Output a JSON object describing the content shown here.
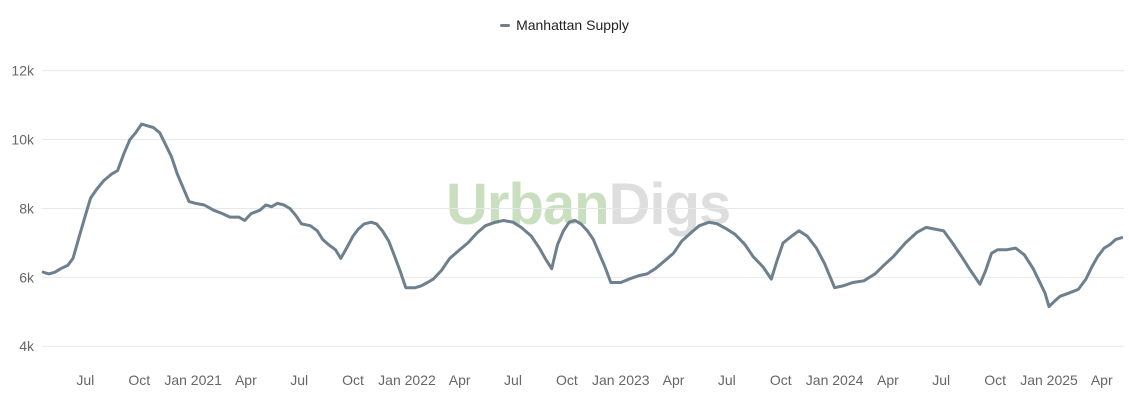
{
  "legend": {
    "label": "Manhattan Supply"
  },
  "watermark": {
    "part1": "Urban",
    "part2": "Digs"
  },
  "colors": {
    "series": "#6e7f8d",
    "grid": "#e8e8e8",
    "tick_text": "#666666",
    "watermark_green": "#c9dfbf",
    "watermark_gray": "#dedede"
  },
  "chart_data": {
    "type": "line",
    "title": "",
    "xlabel": "",
    "ylabel": "",
    "ylim": [
      3600,
      12600
    ],
    "xlim": [
      "2020-04-18",
      "2025-05-09"
    ],
    "y_ticks": [
      {
        "value": 4000,
        "label": "4k"
      },
      {
        "value": 6000,
        "label": "6k"
      },
      {
        "value": 8000,
        "label": "8k"
      },
      {
        "value": 10000,
        "label": "10k"
      },
      {
        "value": 12000,
        "label": "12k"
      }
    ],
    "x_ticks": [
      {
        "date": "2020-07-01",
        "label": "Jul"
      },
      {
        "date": "2020-10-01",
        "label": "Oct"
      },
      {
        "date": "2021-01-01",
        "label": "Jan 2021"
      },
      {
        "date": "2021-04-01",
        "label": "Apr"
      },
      {
        "date": "2021-07-01",
        "label": "Jul"
      },
      {
        "date": "2021-10-01",
        "label": "Oct"
      },
      {
        "date": "2022-01-01",
        "label": "Jan 2022"
      },
      {
        "date": "2022-04-01",
        "label": "Apr"
      },
      {
        "date": "2022-07-01",
        "label": "Jul"
      },
      {
        "date": "2022-10-01",
        "label": "Oct"
      },
      {
        "date": "2023-01-01",
        "label": "Jan 2023"
      },
      {
        "date": "2023-04-01",
        "label": "Apr"
      },
      {
        "date": "2023-07-01",
        "label": "Jul"
      },
      {
        "date": "2023-10-01",
        "label": "Oct"
      },
      {
        "date": "2024-01-01",
        "label": "Jan 2024"
      },
      {
        "date": "2024-04-01",
        "label": "Apr"
      },
      {
        "date": "2024-07-01",
        "label": "Jul"
      },
      {
        "date": "2024-10-01",
        "label": "Oct"
      },
      {
        "date": "2025-01-01",
        "label": "Jan 2025"
      },
      {
        "date": "2025-04-01",
        "label": "Apr"
      }
    ],
    "grid": true,
    "legend_position": "top-center",
    "series": [
      {
        "name": "Manhattan Supply",
        "color": "#6e7f8d",
        "points": [
          [
            "2020-04-20",
            6150
          ],
          [
            "2020-04-30",
            6100
          ],
          [
            "2020-05-10",
            6150
          ],
          [
            "2020-05-20",
            6250
          ],
          [
            "2020-06-01",
            6350
          ],
          [
            "2020-06-10",
            6550
          ],
          [
            "2020-06-20",
            7150
          ],
          [
            "2020-07-01",
            7800
          ],
          [
            "2020-07-10",
            8300
          ],
          [
            "2020-07-20",
            8550
          ],
          [
            "2020-08-01",
            8800
          ],
          [
            "2020-08-15",
            9000
          ],
          [
            "2020-08-25",
            9100
          ],
          [
            "2020-09-05",
            9600
          ],
          [
            "2020-09-15",
            10000
          ],
          [
            "2020-09-25",
            10200
          ],
          [
            "2020-10-05",
            10450
          ],
          [
            "2020-10-15",
            10400
          ],
          [
            "2020-10-25",
            10350
          ],
          [
            "2020-11-05",
            10200
          ],
          [
            "2020-11-15",
            9850
          ],
          [
            "2020-11-25",
            9500
          ],
          [
            "2020-12-05",
            9000
          ],
          [
            "2020-12-15",
            8600
          ],
          [
            "2020-12-25",
            8200
          ],
          [
            "2021-01-05",
            8150
          ],
          [
            "2021-01-20",
            8100
          ],
          [
            "2021-02-05",
            7950
          ],
          [
            "2021-02-20",
            7850
          ],
          [
            "2021-03-05",
            7750
          ],
          [
            "2021-03-20",
            7750
          ],
          [
            "2021-03-30",
            7650
          ],
          [
            "2021-04-10",
            7850
          ],
          [
            "2021-04-25",
            7950
          ],
          [
            "2021-05-05",
            8100
          ],
          [
            "2021-05-15",
            8050
          ],
          [
            "2021-05-25",
            8150
          ],
          [
            "2021-06-05",
            8100
          ],
          [
            "2021-06-15",
            8000
          ],
          [
            "2021-06-25",
            7800
          ],
          [
            "2021-07-05",
            7550
          ],
          [
            "2021-07-20",
            7500
          ],
          [
            "2021-08-01",
            7350
          ],
          [
            "2021-08-10",
            7100
          ],
          [
            "2021-08-20",
            6950
          ],
          [
            "2021-09-01",
            6800
          ],
          [
            "2021-09-10",
            6550
          ],
          [
            "2021-09-20",
            6850
          ],
          [
            "2021-10-01",
            7200
          ],
          [
            "2021-10-10",
            7400
          ],
          [
            "2021-10-20",
            7550
          ],
          [
            "2021-11-01",
            7600
          ],
          [
            "2021-11-10",
            7550
          ],
          [
            "2021-11-20",
            7350
          ],
          [
            "2021-12-01",
            7050
          ],
          [
            "2021-12-10",
            6650
          ],
          [
            "2021-12-20",
            6200
          ],
          [
            "2021-12-30",
            5700
          ],
          [
            "2022-01-05",
            5700
          ],
          [
            "2022-01-15",
            5700
          ],
          [
            "2022-01-25",
            5750
          ],
          [
            "2022-02-05",
            5850
          ],
          [
            "2022-02-15",
            5950
          ],
          [
            "2022-03-01",
            6200
          ],
          [
            "2022-03-15",
            6550
          ],
          [
            "2022-04-01",
            6800
          ],
          [
            "2022-04-15",
            7000
          ],
          [
            "2022-05-01",
            7300
          ],
          [
            "2022-05-15",
            7500
          ],
          [
            "2022-06-01",
            7600
          ],
          [
            "2022-06-15",
            7650
          ],
          [
            "2022-07-01",
            7600
          ],
          [
            "2022-07-15",
            7450
          ],
          [
            "2022-08-01",
            7200
          ],
          [
            "2022-08-15",
            6850
          ],
          [
            "2022-08-25",
            6550
          ],
          [
            "2022-09-05",
            6250
          ],
          [
            "2022-09-15",
            6950
          ],
          [
            "2022-09-25",
            7350
          ],
          [
            "2022-10-05",
            7600
          ],
          [
            "2022-10-15",
            7650
          ],
          [
            "2022-10-25",
            7550
          ],
          [
            "2022-11-05",
            7350
          ],
          [
            "2022-11-15",
            7100
          ],
          [
            "2022-11-25",
            6700
          ],
          [
            "2022-12-05",
            6300
          ],
          [
            "2022-12-15",
            5850
          ],
          [
            "2023-01-01",
            5850
          ],
          [
            "2023-01-15",
            5950
          ],
          [
            "2023-02-01",
            6050
          ],
          [
            "2023-02-15",
            6100
          ],
          [
            "2023-03-01",
            6250
          ],
          [
            "2023-03-15",
            6450
          ],
          [
            "2023-04-01",
            6700
          ],
          [
            "2023-04-15",
            7050
          ],
          [
            "2023-05-01",
            7300
          ],
          [
            "2023-05-15",
            7500
          ],
          [
            "2023-06-01",
            7600
          ],
          [
            "2023-06-15",
            7550
          ],
          [
            "2023-07-01",
            7400
          ],
          [
            "2023-07-15",
            7250
          ],
          [
            "2023-08-01",
            6950
          ],
          [
            "2023-08-15",
            6600
          ],
          [
            "2023-09-01",
            6300
          ],
          [
            "2023-09-15",
            5950
          ],
          [
            "2023-09-25",
            6500
          ],
          [
            "2023-10-05",
            7000
          ],
          [
            "2023-10-20",
            7200
          ],
          [
            "2023-11-01",
            7350
          ],
          [
            "2023-11-15",
            7200
          ],
          [
            "2023-12-01",
            6850
          ],
          [
            "2023-12-15",
            6400
          ],
          [
            "2024-01-01",
            5700
          ],
          [
            "2024-01-15",
            5750
          ],
          [
            "2024-02-01",
            5850
          ],
          [
            "2024-02-20",
            5900
          ],
          [
            "2024-03-10",
            6100
          ],
          [
            "2024-03-25",
            6350
          ],
          [
            "2024-04-10",
            6600
          ],
          [
            "2024-05-01",
            7000
          ],
          [
            "2024-05-20",
            7300
          ],
          [
            "2024-06-05",
            7450
          ],
          [
            "2024-06-20",
            7400
          ],
          [
            "2024-07-05",
            7350
          ],
          [
            "2024-07-20",
            7000
          ],
          [
            "2024-08-05",
            6600
          ],
          [
            "2024-08-20",
            6200
          ],
          [
            "2024-09-05",
            5800
          ],
          [
            "2024-09-15",
            6200
          ],
          [
            "2024-09-25",
            6700
          ],
          [
            "2024-10-05",
            6800
          ],
          [
            "2024-10-20",
            6800
          ],
          [
            "2024-11-05",
            6850
          ],
          [
            "2024-11-20",
            6650
          ],
          [
            "2024-12-05",
            6250
          ],
          [
            "2024-12-15",
            5900
          ],
          [
            "2024-12-25",
            5550
          ],
          [
            "2025-01-01",
            5150
          ],
          [
            "2025-01-10",
            5300
          ],
          [
            "2025-01-20",
            5450
          ],
          [
            "2025-02-05",
            5550
          ],
          [
            "2025-02-20",
            5650
          ],
          [
            "2025-03-05",
            5950
          ],
          [
            "2025-03-15",
            6300
          ],
          [
            "2025-03-25",
            6600
          ],
          [
            "2025-04-05",
            6850
          ],
          [
            "2025-04-15",
            6950
          ],
          [
            "2025-04-25",
            7100
          ],
          [
            "2025-05-05",
            7150
          ]
        ]
      }
    ]
  }
}
